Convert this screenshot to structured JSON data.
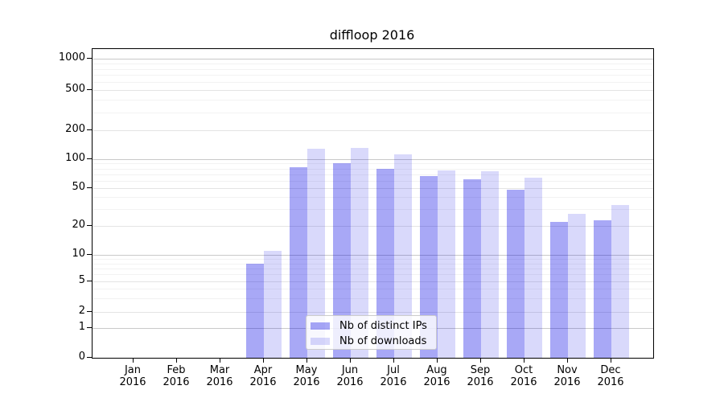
{
  "chart_data": {
    "type": "bar",
    "title": "diffloop 2016",
    "categories": [
      "Jan 2016",
      "Feb 2016",
      "Mar 2016",
      "Apr 2016",
      "May 2016",
      "Jun 2016",
      "Jul 2016",
      "Aug 2016",
      "Sep 2016",
      "Oct 2016",
      "Nov 2016",
      "Dec 2016"
    ],
    "series": [
      {
        "name": "Nb of distinct IPs",
        "color": "rgba(0,0,230,0.34)",
        "values": [
          0,
          0,
          0,
          8,
          83,
          91,
          79,
          67,
          62,
          48,
          22,
          23
        ]
      },
      {
        "name": "Nb of downloads",
        "color": "rgba(0,0,230,0.15)",
        "values": [
          0,
          0,
          0,
          11,
          128,
          132,
          112,
          76,
          75,
          64,
          27,
          33
        ]
      }
    ],
    "xlabel": "",
    "ylabel": "",
    "y_ticks": [
      0,
      1,
      2,
      5,
      10,
      20,
      50,
      100,
      200,
      500,
      1000
    ],
    "y_scale": "log-like with 0 baseline",
    "ylim": [
      0,
      1250
    ],
    "grid": true,
    "legend_position": "bottom-center",
    "colors": {
      "frame": "#000000",
      "grid_major": "#c9c9c9",
      "grid_mid": "#e4e4e4",
      "grid_minor": "#f2f2f2"
    }
  }
}
